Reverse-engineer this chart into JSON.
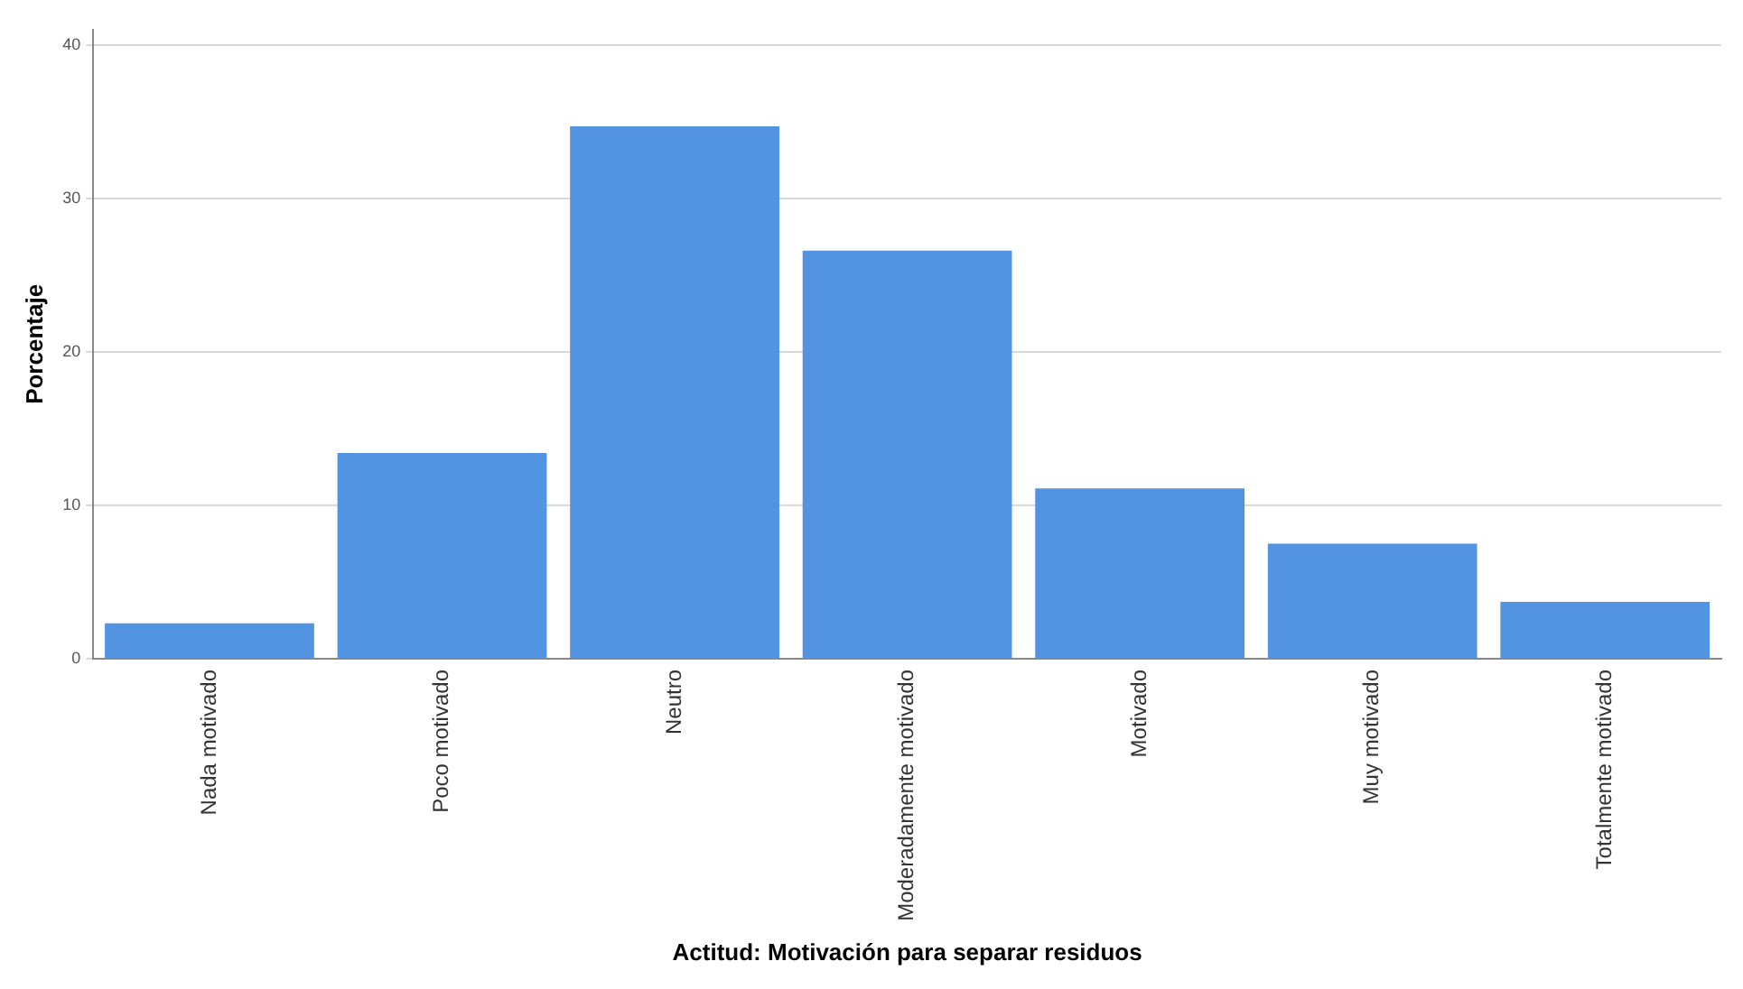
{
  "chart_data": {
    "type": "bar",
    "xlabel": "Actitud: Motivación para separar residuos",
    "ylabel": "Porcentaje",
    "categories": [
      "Nada motivado",
      "Poco motivado",
      "Neutro",
      "Moderadamente motivado",
      "Motivado",
      "Muy motivado",
      "Totalmente motivado"
    ],
    "values": [
      2.3,
      13.4,
      34.7,
      26.6,
      11.1,
      7.5,
      3.7
    ],
    "color": "#5294e2",
    "ylim": [
      0,
      41
    ],
    "yticks": [
      0,
      10,
      20,
      30,
      40
    ],
    "grid": "y"
  }
}
